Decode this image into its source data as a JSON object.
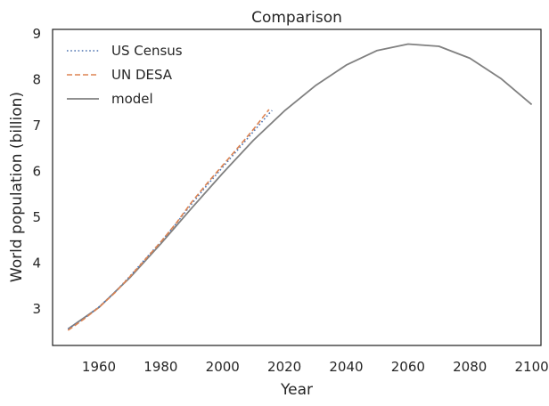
{
  "chart_data": {
    "type": "line",
    "title": "Comparison",
    "xlabel": "Year",
    "ylabel": "World population (billion)",
    "xlim": [
      1945,
      2103
    ],
    "ylim": [
      2.2,
      9.1
    ],
    "xticks": [
      "1960",
      "1980",
      "2000",
      "2020",
      "2040",
      "2060",
      "2080",
      "2100"
    ],
    "yticks": [
      "3",
      "4",
      "5",
      "6",
      "7",
      "8",
      "9"
    ],
    "grid": false,
    "legend_position": "top-left",
    "series": [
      {
        "name": "US Census",
        "style": "dotted",
        "color": "#4c72b0",
        "x": [
          1950,
          1955,
          1960,
          1965,
          1970,
          1975,
          1980,
          1985,
          1990,
          1995,
          2000,
          2005,
          2010,
          2015,
          2016
        ],
        "y": [
          2.56,
          2.78,
          3.04,
          3.35,
          3.71,
          4.09,
          4.46,
          4.86,
          5.29,
          5.7,
          6.09,
          6.48,
          6.87,
          7.26,
          7.33
        ]
      },
      {
        "name": "UN DESA",
        "style": "dashed",
        "color": "#dd8452",
        "x": [
          1950,
          1955,
          1960,
          1965,
          1970,
          1975,
          1980,
          1985,
          1990,
          1995,
          2000,
          2005,
          2010,
          2015
        ],
        "y": [
          2.53,
          2.77,
          3.03,
          3.34,
          3.7,
          4.08,
          4.46,
          4.87,
          5.33,
          5.74,
          6.13,
          6.52,
          6.92,
          7.35
        ]
      },
      {
        "name": "model",
        "style": "solid",
        "color": "#808080",
        "x": [
          1950,
          1960,
          1970,
          1980,
          1990,
          2000,
          2010,
          2020,
          2030,
          2040,
          2050,
          2060,
          2070,
          2080,
          2090,
          2100
        ],
        "y": [
          2.56,
          3.03,
          3.68,
          4.42,
          5.2,
          5.96,
          6.68,
          7.32,
          7.87,
          8.32,
          8.64,
          8.78,
          8.73,
          8.47,
          8.03,
          7.46
        ]
      }
    ]
  }
}
